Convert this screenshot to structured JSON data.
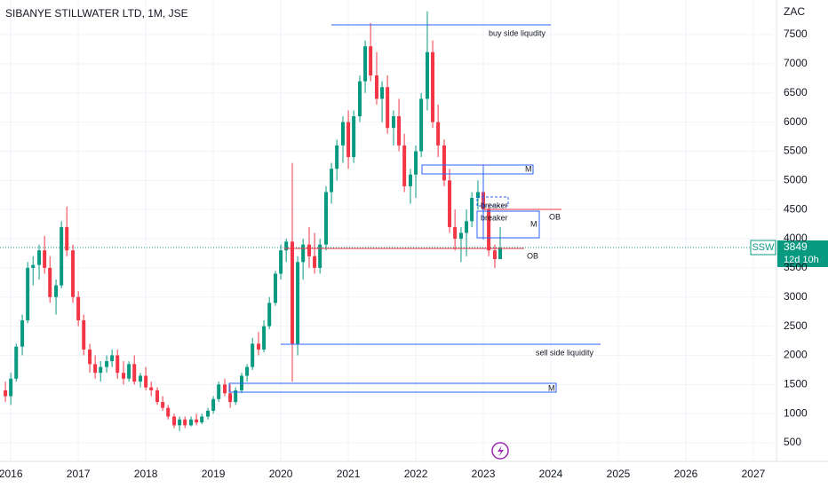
{
  "chart_data": {
    "type": "candlestick",
    "title": "SIBANYE STILLWATER LTD, 1M, JSE",
    "currency": "ZAC",
    "symbol": "SSW",
    "last_price": 3849,
    "countdown": "12d 10h",
    "up_color": "#089981",
    "down_color": "#f23645",
    "xlim": [
      2015.84,
      2027.29
    ],
    "xticks": [
      2016,
      2017,
      2018,
      2019,
      2020,
      2021,
      2022,
      2023,
      2024,
      2025,
      2026,
      2027
    ],
    "ylim": [
      212,
      8094
    ],
    "yticks": [
      500,
      1000,
      1500,
      2000,
      2500,
      3000,
      3500,
      4000,
      4500,
      5000,
      5500,
      6000,
      6500,
      7000,
      7500
    ],
    "x": [
      2015.92,
      2016.0,
      2016.08,
      2016.17,
      2016.25,
      2016.33,
      2016.42,
      2016.5,
      2016.58,
      2016.67,
      2016.75,
      2016.83,
      2016.92,
      2017.0,
      2017.08,
      2017.17,
      2017.25,
      2017.33,
      2017.42,
      2017.5,
      2017.58,
      2017.67,
      2017.75,
      2017.83,
      2017.92,
      2018.0,
      2018.08,
      2018.17,
      2018.25,
      2018.33,
      2018.42,
      2018.5,
      2018.58,
      2018.67,
      2018.75,
      2018.83,
      2018.92,
      2019.0,
      2019.08,
      2019.17,
      2019.25,
      2019.33,
      2019.42,
      2019.5,
      2019.58,
      2019.67,
      2019.75,
      2019.83,
      2019.92,
      2020.0,
      2020.08,
      2020.17,
      2020.25,
      2020.33,
      2020.42,
      2020.5,
      2020.58,
      2020.67,
      2020.75,
      2020.83,
      2020.92,
      2021.0,
      2021.08,
      2021.17,
      2021.25,
      2021.33,
      2021.42,
      2021.5,
      2021.58,
      2021.67,
      2021.75,
      2021.83,
      2021.92,
      2022.0,
      2022.08,
      2022.17,
      2022.25,
      2022.33,
      2022.42,
      2022.5,
      2022.58,
      2022.67,
      2022.75,
      2022.83,
      2022.92,
      2023.0,
      2023.08,
      2023.17,
      2023.25
    ],
    "ohlc": [
      [
        1400,
        1550,
        1200,
        1300
      ],
      [
        1300,
        1700,
        1150,
        1600
      ],
      [
        1600,
        2200,
        1550,
        2150
      ],
      [
        2150,
        2700,
        2000,
        2600
      ],
      [
        2600,
        3600,
        2550,
        3500
      ],
      [
        3500,
        3700,
        3200,
        3550
      ],
      [
        3550,
        3900,
        3300,
        3800
      ],
      [
        3800,
        4050,
        3400,
        3500
      ],
      [
        3500,
        3700,
        2900,
        3000
      ],
      [
        3000,
        3300,
        2700,
        3200
      ],
      [
        3200,
        4300,
        3150,
        4200
      ],
      [
        4200,
        4550,
        3700,
        3800
      ],
      [
        3800,
        3900,
        2900,
        3000
      ],
      [
        3000,
        3100,
        2500,
        2600
      ],
      [
        2600,
        2700,
        2000,
        2100
      ],
      [
        2100,
        2200,
        1700,
        1850
      ],
      [
        1850,
        2000,
        1600,
        1700
      ],
      [
        1700,
        1900,
        1550,
        1800
      ],
      [
        1800,
        2000,
        1700,
        1900
      ],
      [
        1900,
        2100,
        1800,
        2000
      ],
      [
        2000,
        2100,
        1600,
        1700
      ],
      [
        1700,
        1900,
        1500,
        1600
      ],
      [
        1600,
        1900,
        1550,
        1850
      ],
      [
        1850,
        2000,
        1500,
        1550
      ],
      [
        1550,
        1700,
        1450,
        1650
      ],
      [
        1650,
        1800,
        1400,
        1450
      ],
      [
        1450,
        1550,
        1300,
        1400
      ],
      [
        1400,
        1450,
        1150,
        1200
      ],
      [
        1200,
        1300,
        1050,
        1100
      ],
      [
        1100,
        1150,
        900,
        950
      ],
      [
        950,
        1000,
        750,
        800
      ],
      [
        800,
        950,
        700,
        900
      ],
      [
        900,
        950,
        750,
        800
      ],
      [
        800,
        950,
        780,
        900
      ],
      [
        900,
        1000,
        800,
        850
      ],
      [
        850,
        1000,
        820,
        950
      ],
      [
        950,
        1100,
        900,
        1050
      ],
      [
        1050,
        1300,
        1000,
        1250
      ],
      [
        1250,
        1550,
        1200,
        1500
      ],
      [
        1500,
        1600,
        1300,
        1350
      ],
      [
        1350,
        1500,
        1100,
        1200
      ],
      [
        1200,
        1450,
        1150,
        1400
      ],
      [
        1400,
        1700,
        1350,
        1650
      ],
      [
        1650,
        1850,
        1550,
        1800
      ],
      [
        1800,
        2300,
        1750,
        2200
      ],
      [
        2200,
        2400,
        2000,
        2100
      ],
      [
        2100,
        2600,
        2050,
        2500
      ],
      [
        2500,
        3000,
        2450,
        2900
      ],
      [
        2900,
        3450,
        2850,
        3400
      ],
      [
        3400,
        3900,
        3300,
        3800
      ],
      [
        3800,
        4000,
        3600,
        3950
      ],
      [
        3950,
        5300,
        1550,
        2200
      ],
      [
        2200,
        3700,
        2000,
        3600
      ],
      [
        3600,
        4000,
        3300,
        3900
      ],
      [
        3900,
        4200,
        3500,
        3700
      ],
      [
        3700,
        4100,
        3400,
        3500
      ],
      [
        3500,
        4000,
        3400,
        3900
      ],
      [
        3900,
        4900,
        3800,
        4800
      ],
      [
        4800,
        5300,
        4600,
        5200
      ],
      [
        5200,
        5700,
        5000,
        5600
      ],
      [
        5600,
        6100,
        5300,
        6000
      ],
      [
        6000,
        6200,
        5200,
        5400
      ],
      [
        5400,
        6200,
        5300,
        6100
      ],
      [
        6100,
        6800,
        6000,
        6700
      ],
      [
        6700,
        7400,
        6500,
        7300
      ],
      [
        7300,
        7700,
        6700,
        6800
      ],
      [
        6800,
        7200,
        6300,
        6400
      ],
      [
        6400,
        6700,
        6000,
        6600
      ],
      [
        6600,
        6800,
        5800,
        5900
      ],
      [
        5900,
        6200,
        5600,
        6100
      ],
      [
        6100,
        6400,
        5500,
        5600
      ],
      [
        5600,
        5800,
        4800,
        4900
      ],
      [
        4900,
        5200,
        4600,
        5100
      ],
      [
        5100,
        5600,
        4700,
        5500
      ],
      [
        5500,
        6500,
        5400,
        6400
      ],
      [
        6400,
        7900,
        6200,
        7200
      ],
      [
        7200,
        7400,
        5900,
        6000
      ],
      [
        6000,
        6300,
        5400,
        5600
      ],
      [
        5600,
        5700,
        4900,
        5000
      ],
      [
        5000,
        5200,
        4100,
        4200
      ],
      [
        4200,
        4500,
        3800,
        4000
      ],
      [
        4000,
        4200,
        3600,
        4100
      ],
      [
        4100,
        4500,
        3700,
        4300
      ],
      [
        4300,
        4800,
        4200,
        4700
      ],
      [
        4700,
        5000,
        4500,
        4800
      ],
      [
        4800,
        4900,
        4400,
        4500
      ],
      [
        4500,
        4600,
        3700,
        3800
      ],
      [
        3800,
        3900,
        3500,
        3650
      ],
      [
        3650,
        4200,
        3650,
        3849
      ]
    ],
    "annotations": [
      "buy side liqudity",
      "M",
      "breaker",
      "breaker",
      "M",
      "OB",
      "OB",
      "sell side liquidity",
      "M"
    ]
  }
}
